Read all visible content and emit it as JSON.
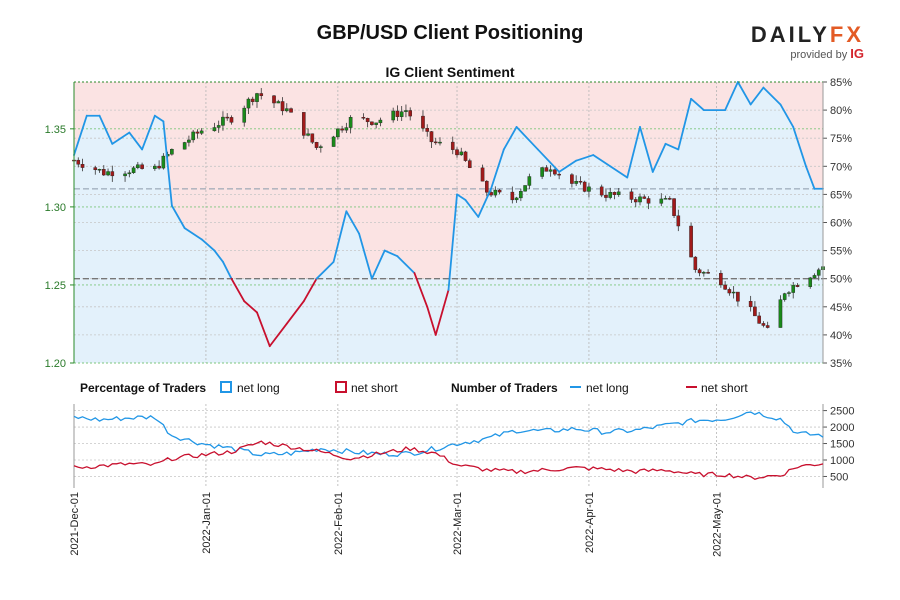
{
  "header": {
    "title": "GBP/USD Client Positioning",
    "subtitle": "IG Client Sentiment",
    "logo_main": "DAILY",
    "logo_fx": "FX",
    "logo_provided": "provided by",
    "logo_ig": "IG"
  },
  "legend": {
    "pct_heading": "Percentage of Traders",
    "pct_long": "net long",
    "pct_short": "net short",
    "num_heading": "Number of Traders",
    "num_long": "net long",
    "num_short": "net short"
  },
  "colors": {
    "long": "#2196e6",
    "short": "#c8102e",
    "long_fill": "#e3f1fb",
    "short_fill": "#fbe3e3",
    "up_candle": "#1a8a1a",
    "down_candle": "#a11a1a"
  },
  "chart_data": [
    {
      "type": "candlestick",
      "series_name": "GBP/USD",
      "x_type": "date",
      "x_range": [
        "2021-12-01",
        "2022-05-26"
      ],
      "y_axis_left": {
        "ticks": [
          "1.20",
          "1.25",
          "1.30",
          "1.35"
        ],
        "range": [
          1.2,
          1.38
        ]
      },
      "y_axis_right": {
        "ticks": [
          "35%",
          "40%",
          "45%",
          "50%",
          "55%",
          "60%",
          "65%",
          "70%",
          "75%",
          "80%",
          "85%"
        ],
        "range": [
          35,
          85
        ]
      },
      "price_reference": 1.3115,
      "sentiment_reference_pct": 50,
      "price_anchors": [
        [
          "2021-12-01",
          1.33
        ],
        [
          "2021-12-08",
          1.322
        ],
        [
          "2021-12-15",
          1.324
        ],
        [
          "2021-12-20",
          1.3245
        ],
        [
          "2021-12-24",
          1.336
        ],
        [
          "2021-12-31",
          1.349
        ],
        [
          "2022-01-07",
          1.357
        ],
        [
          "2022-01-13",
          1.373
        ],
        [
          "2022-01-20",
          1.362
        ],
        [
          "2022-01-27",
          1.338
        ],
        [
          "2022-02-04",
          1.356
        ],
        [
          "2022-02-10",
          1.355
        ],
        [
          "2022-02-17",
          1.362
        ],
        [
          "2022-02-23",
          1.342
        ],
        [
          "2022-03-01",
          1.336
        ],
        [
          "2022-03-08",
          1.31
        ],
        [
          "2022-03-14",
          1.305
        ],
        [
          "2022-03-18",
          1.318
        ],
        [
          "2022-03-23",
          1.326
        ],
        [
          "2022-03-28",
          1.315
        ],
        [
          "2022-04-05",
          1.308
        ],
        [
          "2022-04-13",
          1.305
        ],
        [
          "2022-04-20",
          1.303
        ],
        [
          "2022-04-26",
          1.26
        ],
        [
          "2022-05-02",
          1.253
        ],
        [
          "2022-05-09",
          1.233
        ],
        [
          "2022-05-13",
          1.22
        ],
        [
          "2022-05-17",
          1.246
        ],
        [
          "2022-05-26",
          1.262
        ]
      ],
      "net_long_pct": [
        [
          "2021-12-01",
          72
        ],
        [
          "2021-12-04",
          79
        ],
        [
          "2021-12-07",
          79
        ],
        [
          "2021-12-10",
          74
        ],
        [
          "2021-12-14",
          76
        ],
        [
          "2021-12-17",
          73
        ],
        [
          "2021-12-20",
          79
        ],
        [
          "2021-12-22",
          78
        ],
        [
          "2021-12-24",
          63
        ],
        [
          "2021-12-27",
          59
        ],
        [
          "2021-12-31",
          57
        ],
        [
          "2022-01-03",
          55
        ],
        [
          "2022-01-05",
          53
        ],
        [
          "2022-01-07",
          50
        ],
        [
          "2022-01-10",
          46
        ],
        [
          "2022-01-13",
          44
        ],
        [
          "2022-01-16",
          38
        ],
        [
          "2022-01-20",
          42
        ],
        [
          "2022-01-24",
          46
        ],
        [
          "2022-01-27",
          50
        ],
        [
          "2022-01-31",
          53
        ],
        [
          "2022-02-03",
          62
        ],
        [
          "2022-02-06",
          58
        ],
        [
          "2022-02-09",
          50
        ],
        [
          "2022-02-12",
          55
        ],
        [
          "2022-02-15",
          54
        ],
        [
          "2022-02-19",
          51
        ],
        [
          "2022-02-22",
          45
        ],
        [
          "2022-02-24",
          40
        ],
        [
          "2022-02-27",
          48
        ],
        [
          "2022-03-01",
          65
        ],
        [
          "2022-03-03",
          64
        ],
        [
          "2022-03-06",
          61
        ],
        [
          "2022-03-09",
          66
        ],
        [
          "2022-03-12",
          73
        ],
        [
          "2022-03-15",
          77
        ],
        [
          "2022-03-20",
          73
        ],
        [
          "2022-03-25",
          69
        ],
        [
          "2022-03-29",
          71
        ],
        [
          "2022-04-02",
          72
        ],
        [
          "2022-04-06",
          70
        ],
        [
          "2022-04-10",
          68
        ],
        [
          "2022-04-13",
          77
        ],
        [
          "2022-04-16",
          69
        ],
        [
          "2022-04-19",
          74
        ],
        [
          "2022-04-22",
          73
        ],
        [
          "2022-04-25",
          82
        ],
        [
          "2022-04-28",
          80
        ],
        [
          "2022-05-03",
          80
        ],
        [
          "2022-05-06",
          85
        ],
        [
          "2022-05-09",
          81
        ],
        [
          "2022-05-12",
          84
        ],
        [
          "2022-05-16",
          81
        ],
        [
          "2022-05-19",
          77
        ],
        [
          "2022-05-22",
          70
        ],
        [
          "2022-05-24",
          66
        ],
        [
          "2022-05-26",
          66
        ]
      ],
      "net_long_traders": [
        [
          "2021-12-01",
          2300
        ],
        [
          "2021-12-07",
          2220
        ],
        [
          "2021-12-14",
          2280
        ],
        [
          "2021-12-20",
          2310
        ],
        [
          "2021-12-24",
          1750
        ],
        [
          "2021-12-31",
          1500
        ],
        [
          "2022-01-07",
          1350
        ],
        [
          "2022-01-14",
          1150
        ],
        [
          "2022-01-21",
          1200
        ],
        [
          "2022-01-28",
          1350
        ],
        [
          "2022-02-04",
          1250
        ],
        [
          "2022-02-11",
          1180
        ],
        [
          "2022-02-18",
          1200
        ],
        [
          "2022-02-24",
          1350
        ],
        [
          "2022-03-01",
          1500
        ],
        [
          "2022-03-08",
          1650
        ],
        [
          "2022-03-15",
          1900
        ],
        [
          "2022-03-22",
          1880
        ],
        [
          "2022-03-29",
          1950
        ],
        [
          "2022-04-05",
          1850
        ],
        [
          "2022-04-12",
          1900
        ],
        [
          "2022-04-19",
          2050
        ],
        [
          "2022-04-26",
          2200
        ],
        [
          "2022-05-03",
          2250
        ],
        [
          "2022-05-09",
          2480
        ],
        [
          "2022-05-16",
          2250
        ],
        [
          "2022-05-20",
          1800
        ],
        [
          "2022-05-26",
          1750
        ]
      ],
      "net_short_traders": [
        [
          "2021-12-01",
          770
        ],
        [
          "2021-12-07",
          820
        ],
        [
          "2021-12-14",
          880
        ],
        [
          "2021-12-20",
          850
        ],
        [
          "2021-12-24",
          1050
        ],
        [
          "2021-12-31",
          1150
        ],
        [
          "2022-01-07",
          1250
        ],
        [
          "2022-01-14",
          1550
        ],
        [
          "2022-01-21",
          1400
        ],
        [
          "2022-01-28",
          1250
        ],
        [
          "2022-02-04",
          1050
        ],
        [
          "2022-02-11",
          1200
        ],
        [
          "2022-02-18",
          1350
        ],
        [
          "2022-02-24",
          1200
        ],
        [
          "2022-03-01",
          850
        ],
        [
          "2022-03-08",
          700
        ],
        [
          "2022-03-15",
          640
        ],
        [
          "2022-03-22",
          700
        ],
        [
          "2022-03-29",
          760
        ],
        [
          "2022-04-05",
          720
        ],
        [
          "2022-04-12",
          650
        ],
        [
          "2022-04-19",
          700
        ],
        [
          "2022-04-26",
          560
        ],
        [
          "2022-05-03",
          560
        ],
        [
          "2022-05-09",
          460
        ],
        [
          "2022-05-16",
          540
        ],
        [
          "2022-05-20",
          800
        ],
        [
          "2022-05-26",
          900
        ]
      ],
      "bottom_y_ticks": [
        "500",
        "1000",
        "1500",
        "2000",
        "2500"
      ],
      "x_ticks": [
        "2021-Dec-01",
        "2022-Jan-01",
        "2022-Feb-01",
        "2022-Mar-01",
        "2022-Apr-01",
        "2022-May-01"
      ]
    }
  ]
}
